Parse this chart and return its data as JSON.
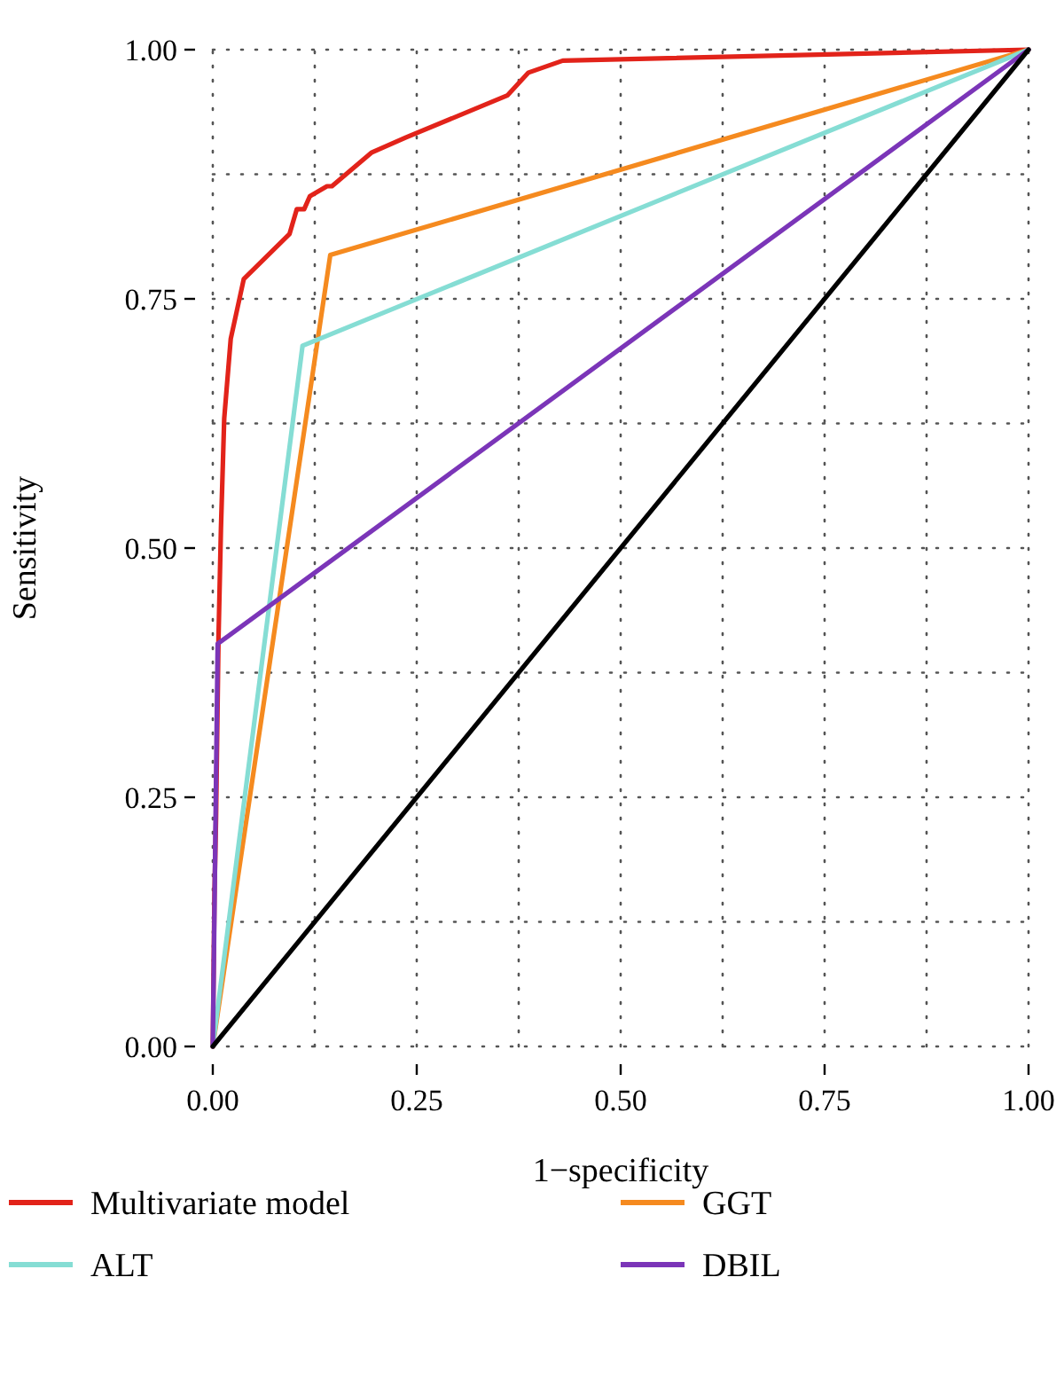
{
  "chart_data": {
    "type": "line",
    "xlabel": "1−specificity",
    "ylabel": "Sensitivity",
    "xlim": [
      0,
      1
    ],
    "ylim": [
      0,
      1
    ],
    "xticks": [
      {
        "value": 0,
        "label": "0.00"
      },
      {
        "value": 0.125,
        "label": null
      },
      {
        "value": 0.25,
        "label": "0.25"
      },
      {
        "value": 0.375,
        "label": null
      },
      {
        "value": 0.5,
        "label": "0.50"
      },
      {
        "value": 0.625,
        "label": null
      },
      {
        "value": 0.75,
        "label": "0.75"
      },
      {
        "value": 0.875,
        "label": null
      },
      {
        "value": 1,
        "label": "1.00"
      }
    ],
    "yticks": [
      {
        "value": 0,
        "label": "0.00"
      },
      {
        "value": 0.125,
        "label": null
      },
      {
        "value": 0.25,
        "label": "0.25"
      },
      {
        "value": 0.375,
        "label": null
      },
      {
        "value": 0.5,
        "label": "0.50"
      },
      {
        "value": 0.625,
        "label": null
      },
      {
        "value": 0.75,
        "label": "0.75"
      },
      {
        "value": 0.875,
        "label": null
      },
      {
        "value": 1,
        "label": "1.00"
      }
    ],
    "grid": true,
    "legend": "bottom",
    "series": [
      {
        "name": "Multivariate model",
        "color": "#e2231a",
        "x": [
          0,
          0.002,
          0.004,
          0.007,
          0.01,
          0.014,
          0.017,
          0.022,
          0.03,
          0.038,
          0.094,
          0.103,
          0.112,
          0.119,
          0.14,
          0.146,
          0.195,
          0.237,
          0.361,
          0.387,
          0.429,
          1
        ],
        "values": [
          0,
          0.15,
          0.23,
          0.41,
          0.52,
          0.63,
          0.66,
          0.71,
          0.74,
          0.77,
          0.815,
          0.84,
          0.84,
          0.853,
          0.863,
          0.863,
          0.897,
          0.912,
          0.954,
          0.977,
          0.989,
          1
        ]
      },
      {
        "name": "GGT",
        "color": "#f58a1f",
        "x": [
          0,
          0.144,
          1
        ],
        "values": [
          0,
          0.794,
          1
        ]
      },
      {
        "name": "ALT",
        "color": "#85ddd4",
        "x": [
          0,
          0.11,
          1
        ],
        "values": [
          0,
          0.703,
          1
        ]
      },
      {
        "name": "DBIL",
        "color": "#7b35b8",
        "x": [
          0,
          0.006,
          1
        ],
        "values": [
          0,
          0.404,
          1
        ]
      },
      {
        "color": "#000000",
        "x": [
          0,
          1
        ],
        "values": [
          0,
          1
        ]
      }
    ]
  }
}
